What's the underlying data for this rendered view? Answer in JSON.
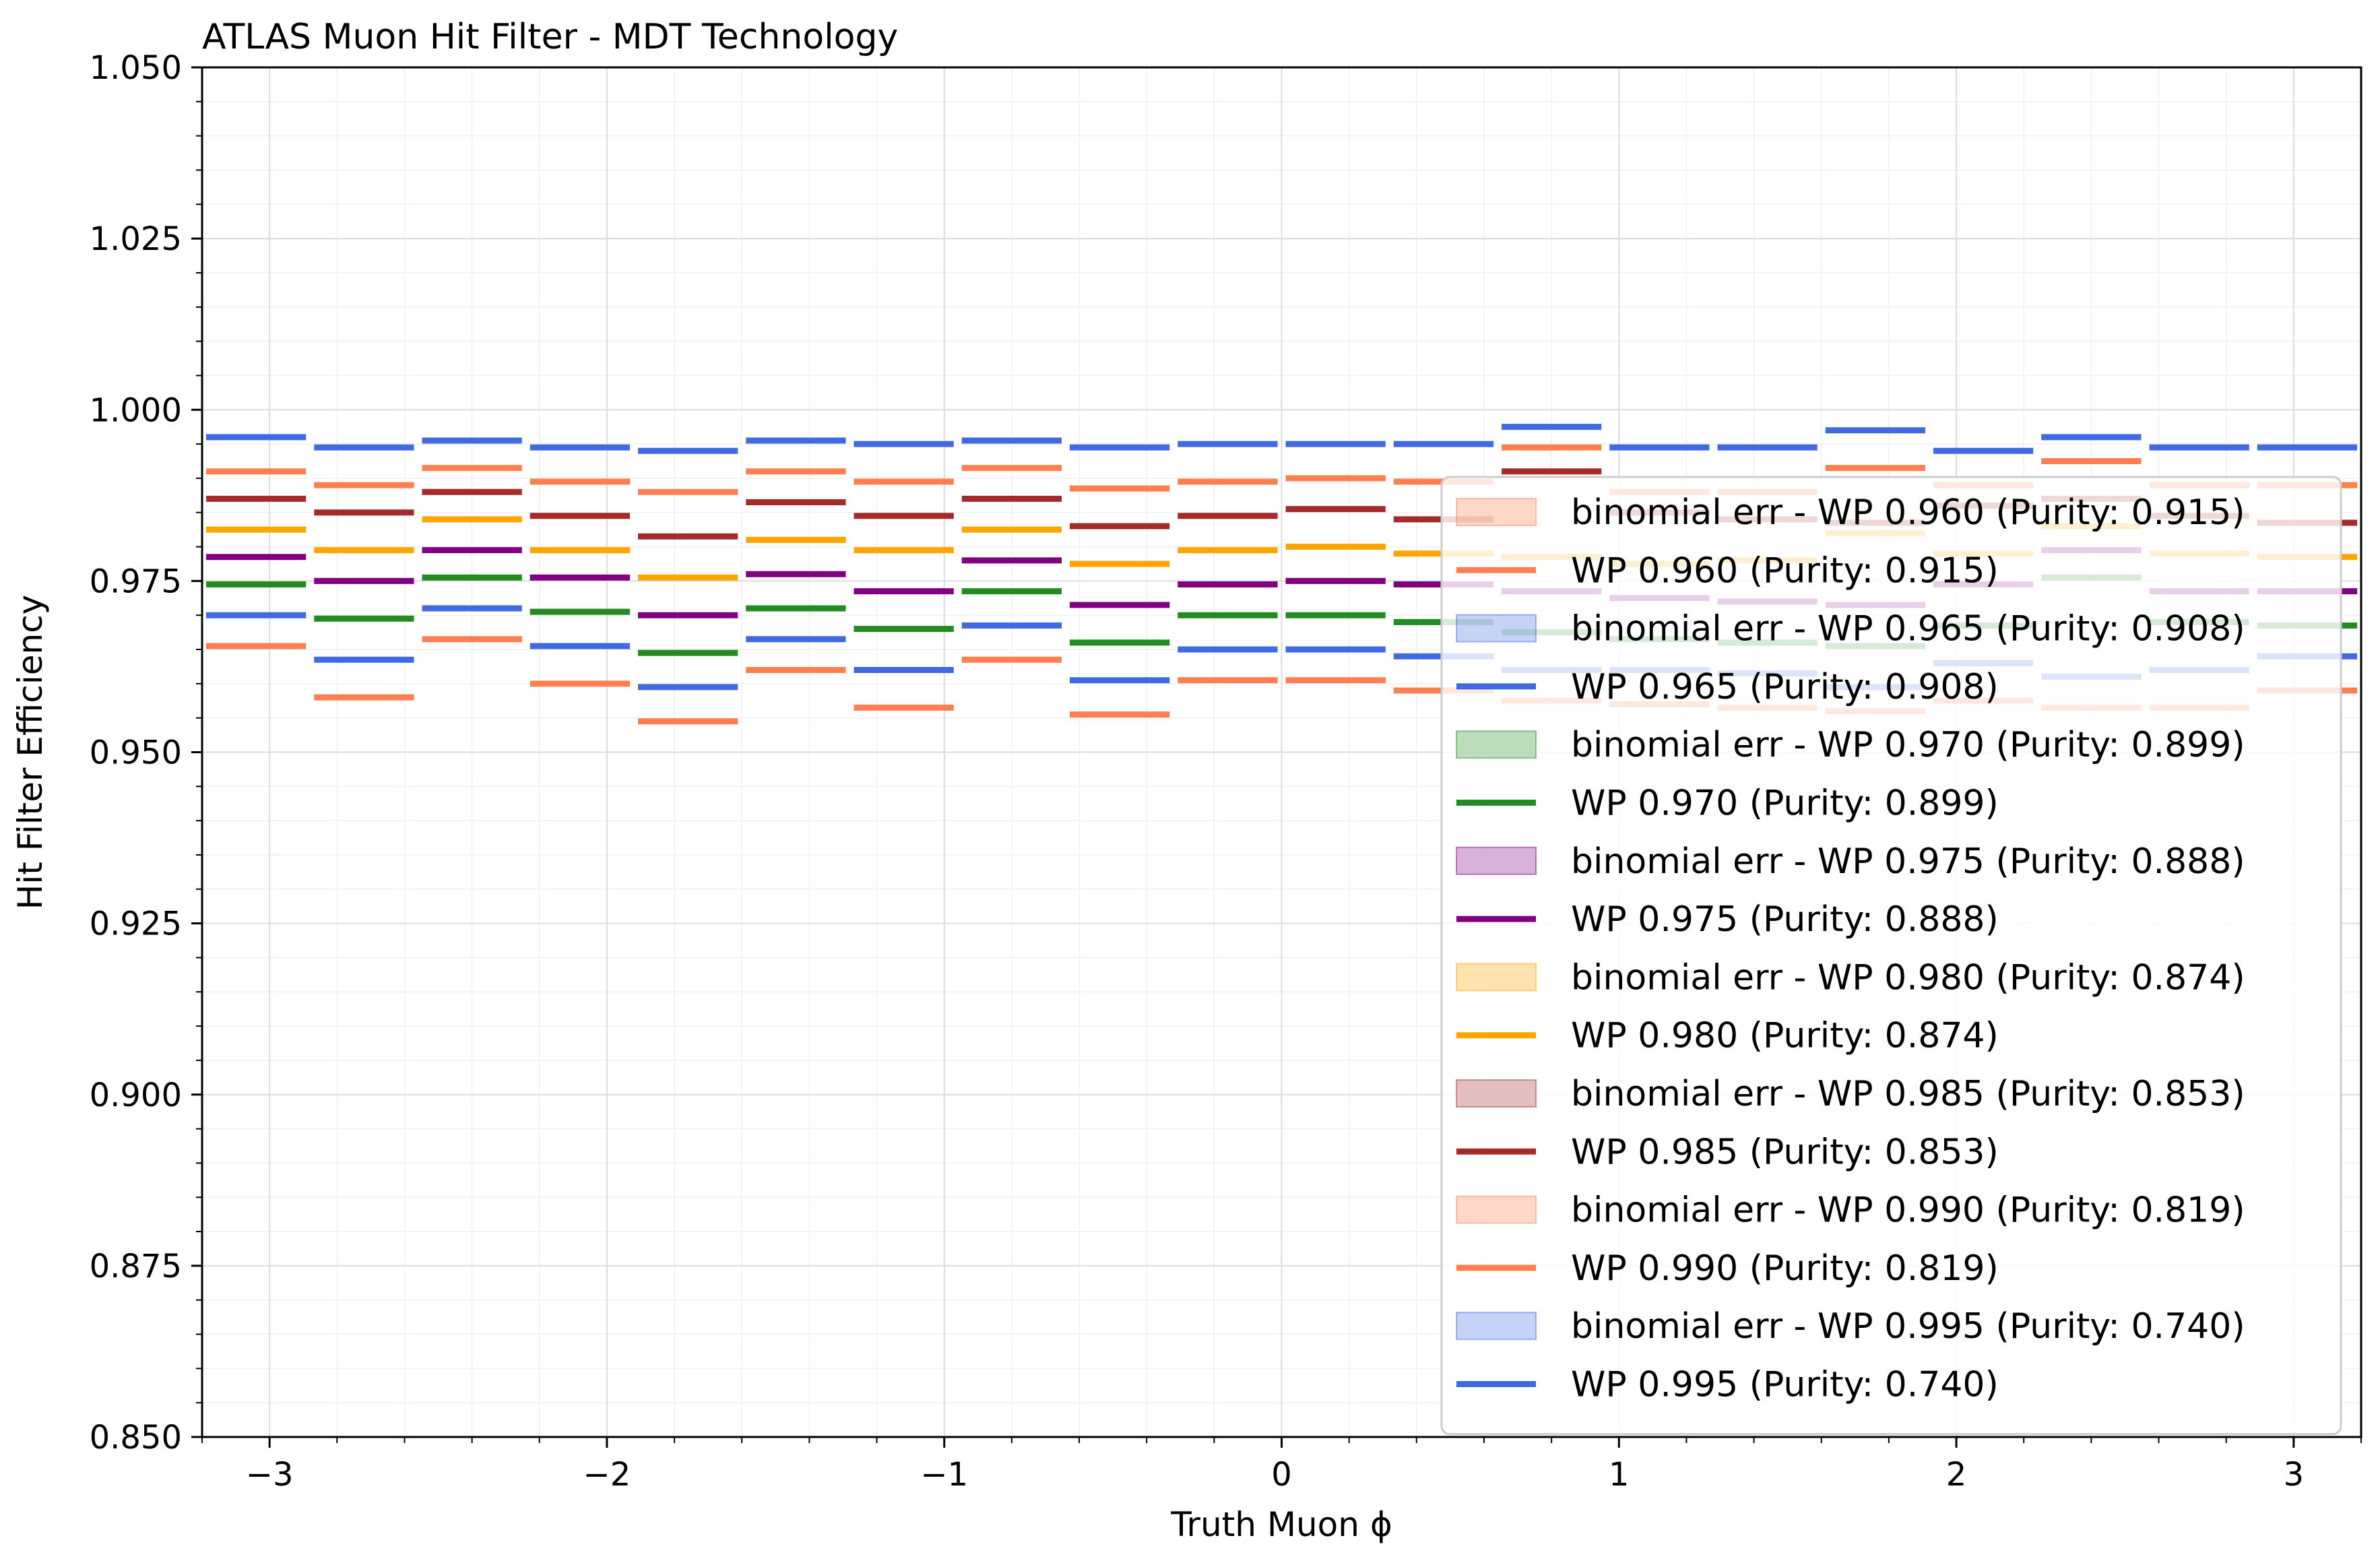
{
  "chart_data": {
    "type": "step",
    "title": "ATLAS Muon Hit Filter - MDT Technology",
    "xlabel": "Truth Muon ϕ",
    "ylabel": "Hit Filter Efficiency",
    "xlim": [
      -3.2,
      3.2
    ],
    "ylim": [
      0.85,
      1.05
    ],
    "grid": true,
    "legend_position": "center-right",
    "xticks": [
      -3,
      -2,
      -1,
      0,
      1,
      2,
      3
    ],
    "xtick_labels": [
      "−3",
      "−2",
      "−1",
      "0",
      "1",
      "2",
      "3"
    ],
    "yticks": [
      0.85,
      0.875,
      0.9,
      0.925,
      0.95,
      0.975,
      1.0,
      1.025,
      1.05
    ],
    "ytick_labels": [
      "0.850",
      "0.875",
      "0.900",
      "0.925",
      "0.950",
      "0.975",
      "1.000",
      "1.025",
      "1.050"
    ],
    "bin_edges": [
      -3.2,
      -2.88,
      -2.56,
      -2.24,
      -1.92,
      -1.6,
      -1.28,
      -0.96,
      -0.64,
      -0.32,
      0.0,
      0.32,
      0.64,
      0.96,
      1.28,
      1.6,
      1.92,
      2.24,
      2.56,
      2.88,
      3.2
    ],
    "series": [
      {
        "name": "WP 0.960 (Purity: 0.915)",
        "error_label": "binomial err - WP 0.960 (Purity: 0.915)",
        "color": "#ff7f50",
        "values": [
          0.9655,
          0.958,
          0.9665,
          0.96,
          0.9545,
          0.962,
          0.9565,
          0.9635,
          0.9555,
          0.9605,
          0.9605,
          0.959,
          0.9575,
          0.957,
          0.9565,
          0.956,
          0.9575,
          0.9565,
          0.9565,
          0.959
        ]
      },
      {
        "name": "WP 0.965 (Purity: 0.908)",
        "error_label": "binomial err - WP 0.965 (Purity: 0.908)",
        "color": "#4169e1",
        "values": [
          0.97,
          0.9635,
          0.971,
          0.9655,
          0.9595,
          0.9665,
          0.962,
          0.9685,
          0.9605,
          0.965,
          0.965,
          0.964,
          0.962,
          0.962,
          0.9615,
          0.9595,
          0.963,
          0.961,
          0.962,
          0.964
        ]
      },
      {
        "name": "WP 0.970 (Purity: 0.899)",
        "error_label": "binomial err - WP 0.970 (Purity: 0.899)",
        "color": "#228b22",
        "values": [
          0.9745,
          0.9695,
          0.9755,
          0.9705,
          0.9645,
          0.971,
          0.968,
          0.9735,
          0.966,
          0.97,
          0.97,
          0.969,
          0.9675,
          0.9665,
          0.966,
          0.9655,
          0.9685,
          0.9755,
          0.969,
          0.9685
        ]
      },
      {
        "name": "WP 0.975 (Purity: 0.888)",
        "error_label": "binomial err - WP 0.975 (Purity: 0.888)",
        "color": "#800080",
        "values": [
          0.9785,
          0.975,
          0.9795,
          0.9755,
          0.97,
          0.976,
          0.9735,
          0.978,
          0.9715,
          0.9745,
          0.975,
          0.9745,
          0.9735,
          0.9725,
          0.972,
          0.9715,
          0.9745,
          0.9795,
          0.9735,
          0.9735
        ]
      },
      {
        "name": "WP 0.980 (Purity: 0.874)",
        "error_label": "binomial err - WP 0.980 (Purity: 0.874)",
        "color": "#ffa500",
        "values": [
          0.9825,
          0.9795,
          0.984,
          0.9795,
          0.9755,
          0.981,
          0.9795,
          0.9825,
          0.9775,
          0.9795,
          0.98,
          0.979,
          0.9785,
          0.9775,
          0.978,
          0.982,
          0.979,
          0.983,
          0.979,
          0.9785
        ]
      },
      {
        "name": "WP 0.985 (Purity: 0.853)",
        "error_label": "binomial err - WP 0.985 (Purity: 0.853)",
        "color": "#a52a2a",
        "values": [
          0.987,
          0.985,
          0.988,
          0.9845,
          0.9815,
          0.9865,
          0.9845,
          0.987,
          0.983,
          0.9845,
          0.9855,
          0.984,
          0.991,
          0.985,
          0.984,
          0.9835,
          0.986,
          0.987,
          0.9845,
          0.9835
        ]
      },
      {
        "name": "WP 0.990 (Purity: 0.819)",
        "error_label": "binomial err - WP 0.990 (Purity: 0.819)",
        "color": "#ff7f50",
        "values": [
          0.991,
          0.989,
          0.9915,
          0.9895,
          0.988,
          0.991,
          0.9895,
          0.9915,
          0.9885,
          0.9895,
          0.99,
          0.9895,
          0.9945,
          0.988,
          0.988,
          0.9915,
          0.989,
          0.9925,
          0.989,
          0.989
        ]
      },
      {
        "name": "WP 0.995 (Purity: 0.740)",
        "error_label": "binomial err - WP 0.995 (Purity: 0.740)",
        "color": "#4169e1",
        "values": [
          0.996,
          0.9945,
          0.9955,
          0.9945,
          0.994,
          0.9955,
          0.995,
          0.9955,
          0.9945,
          0.995,
          0.995,
          0.995,
          0.9975,
          0.9945,
          0.9945,
          0.997,
          0.994,
          0.996,
          0.9945,
          0.9945
        ]
      }
    ],
    "legend": [
      {
        "kind": "patch",
        "label": "binomial err - WP 0.960 (Purity: 0.915)",
        "color": "#ff7f50"
      },
      {
        "kind": "line",
        "label": "WP 0.960 (Purity: 0.915)",
        "color": "#ff7f50"
      },
      {
        "kind": "patch",
        "label": "binomial err - WP 0.965 (Purity: 0.908)",
        "color": "#4169e1"
      },
      {
        "kind": "line",
        "label": "WP 0.965 (Purity: 0.908)",
        "color": "#4169e1"
      },
      {
        "kind": "patch",
        "label": "binomial err - WP 0.970 (Purity: 0.899)",
        "color": "#228b22"
      },
      {
        "kind": "line",
        "label": "WP 0.970 (Purity: 0.899)",
        "color": "#228b22"
      },
      {
        "kind": "patch",
        "label": "binomial err - WP 0.975 (Purity: 0.888)",
        "color": "#800080"
      },
      {
        "kind": "line",
        "label": "WP 0.975 (Purity: 0.888)",
        "color": "#800080"
      },
      {
        "kind": "patch",
        "label": "binomial err - WP 0.980 (Purity: 0.874)",
        "color": "#ffa500"
      },
      {
        "kind": "line",
        "label": "WP 0.980 (Purity: 0.874)",
        "color": "#ffa500"
      },
      {
        "kind": "patch",
        "label": "binomial err - WP 0.985 (Purity: 0.853)",
        "color": "#a52a2a"
      },
      {
        "kind": "line",
        "label": "WP 0.985 (Purity: 0.853)",
        "color": "#a52a2a"
      },
      {
        "kind": "patch",
        "label": "binomial err - WP 0.990 (Purity: 0.819)",
        "color": "#ff7f50"
      },
      {
        "kind": "line",
        "label": "WP 0.990 (Purity: 0.819)",
        "color": "#ff7f50"
      },
      {
        "kind": "patch",
        "label": "binomial err - WP 0.995 (Purity: 0.740)",
        "color": "#4169e1"
      },
      {
        "kind": "line",
        "label": "WP 0.995 (Purity: 0.740)",
        "color": "#4169e1"
      }
    ]
  }
}
